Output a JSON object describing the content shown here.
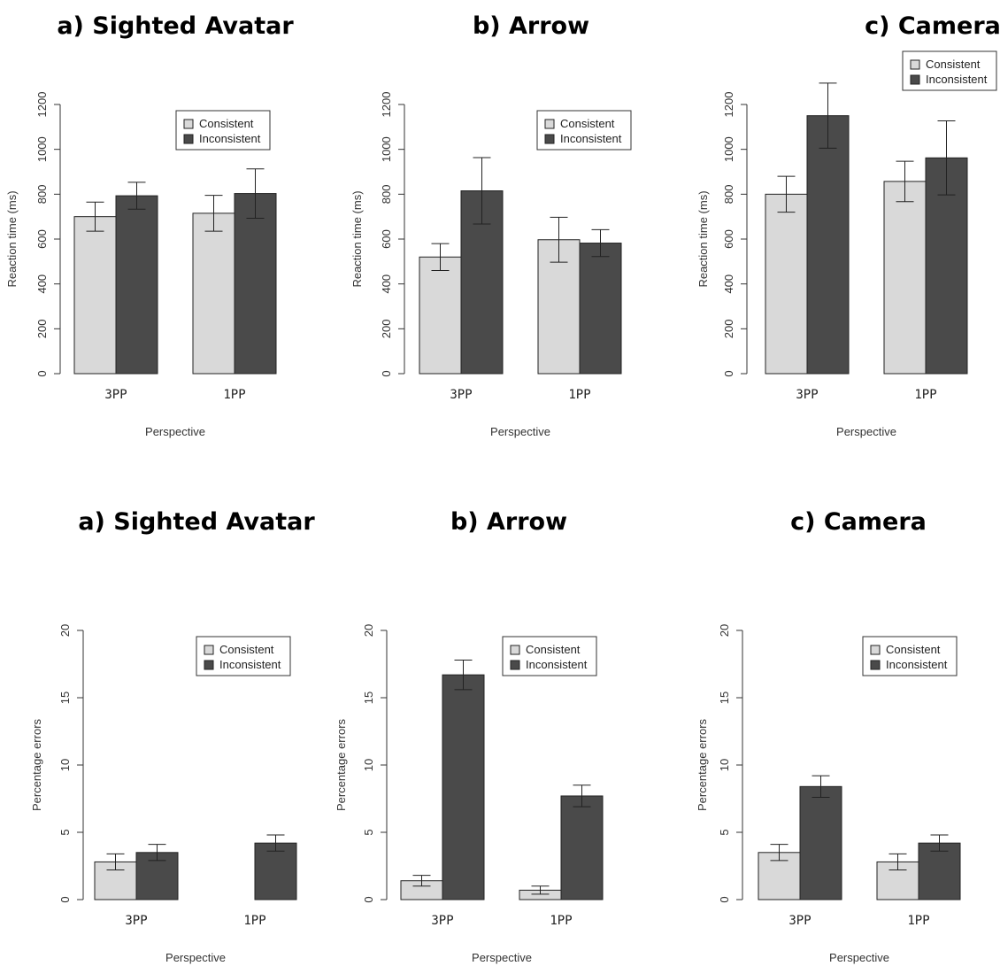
{
  "chart_data": [
    {
      "type": "bar",
      "title": "a) Sighted Avatar",
      "categories": [
        "3PP",
        "1PP"
      ],
      "series": [
        {
          "name": "Consistent",
          "values": [
            700,
            715
          ],
          "error": [
            65,
            80
          ]
        },
        {
          "name": "Inconsistent",
          "values": [
            793,
            803
          ],
          "error": [
            60,
            110
          ]
        }
      ],
      "xlabel": "Perspective",
      "ylabel": "Reaction time (ms)",
      "ylim": [
        0,
        1200
      ],
      "yticks": [
        "0",
        "200",
        "400",
        "600",
        "800",
        "1000",
        "1200"
      ],
      "legend": "top-right"
    },
    {
      "type": "bar",
      "title": "b) Arrow",
      "categories": [
        "3PP",
        "1PP"
      ],
      "series": [
        {
          "name": "Consistent",
          "values": [
            520,
            597
          ],
          "error": [
            60,
            100
          ]
        },
        {
          "name": "Inconsistent",
          "values": [
            815,
            582
          ],
          "error": [
            148,
            60
          ]
        }
      ],
      "xlabel": "Perspective",
      "ylabel": "Reaction time (ms)",
      "ylim": [
        0,
        1200
      ],
      "yticks": [
        "0",
        "200",
        "400",
        "600",
        "800",
        "1000",
        "1200"
      ],
      "legend": "top-right"
    },
    {
      "type": "bar",
      "title": "c) Camera",
      "categories": [
        "3PP",
        "1PP"
      ],
      "series": [
        {
          "name": "Consistent",
          "values": [
            800,
            857
          ],
          "error": [
            80,
            90
          ]
        },
        {
          "name": "Inconsistent",
          "values": [
            1150,
            962
          ],
          "error": [
            145,
            165
          ]
        }
      ],
      "xlabel": "Perspective",
      "ylabel": "Reaction time (ms)",
      "ylim": [
        0,
        1200
      ],
      "yticks": [
        "0",
        "200",
        "400",
        "600",
        "800",
        "1000",
        "1200"
      ],
      "legend": "top-right"
    },
    {
      "type": "bar",
      "title": "a) Sighted Avatar",
      "categories": [
        "3PP",
        "1PP"
      ],
      "series": [
        {
          "name": "Consistent",
          "values": [
            2.8,
            0
          ],
          "error": [
            0.6,
            0
          ]
        },
        {
          "name": "Inconsistent",
          "values": [
            3.5,
            4.2
          ],
          "error": [
            0.6,
            0.6
          ]
        }
      ],
      "xlabel": "Perspective",
      "ylabel": "Percentage errors",
      "ylim": [
        0,
        20
      ],
      "yticks": [
        "0",
        "5",
        "10",
        "15",
        "20"
      ],
      "legend": "top-right"
    },
    {
      "type": "bar",
      "title": "b) Arrow",
      "categories": [
        "3PP",
        "1PP"
      ],
      "series": [
        {
          "name": "Consistent",
          "values": [
            1.4,
            0.7
          ],
          "error": [
            0.4,
            0.3
          ]
        },
        {
          "name": "Inconsistent",
          "values": [
            16.7,
            7.7
          ],
          "error": [
            1.1,
            0.8
          ]
        }
      ],
      "xlabel": "Perspective",
      "ylabel": "Percentage errors",
      "ylim": [
        0,
        20
      ],
      "yticks": [
        "0",
        "5",
        "10",
        "15",
        "20"
      ],
      "legend": "top-right"
    },
    {
      "type": "bar",
      "title": "c) Camera",
      "categories": [
        "3PP",
        "1PP"
      ],
      "series": [
        {
          "name": "Consistent",
          "values": [
            3.5,
            2.8
          ],
          "error": [
            0.6,
            0.6
          ]
        },
        {
          "name": "Inconsistent",
          "values": [
            8.4,
            4.2
          ],
          "error": [
            0.8,
            0.6
          ]
        }
      ],
      "xlabel": "Perspective",
      "ylabel": "Percentage errors",
      "ylim": [
        0,
        20
      ],
      "yticks": [
        "0",
        "5",
        "10",
        "15",
        "20"
      ],
      "legend": "top-right"
    }
  ],
  "colors": {
    "consistent": "#d9d9d9",
    "inconsistent": "#4a4a4a",
    "axis": "#333333"
  }
}
